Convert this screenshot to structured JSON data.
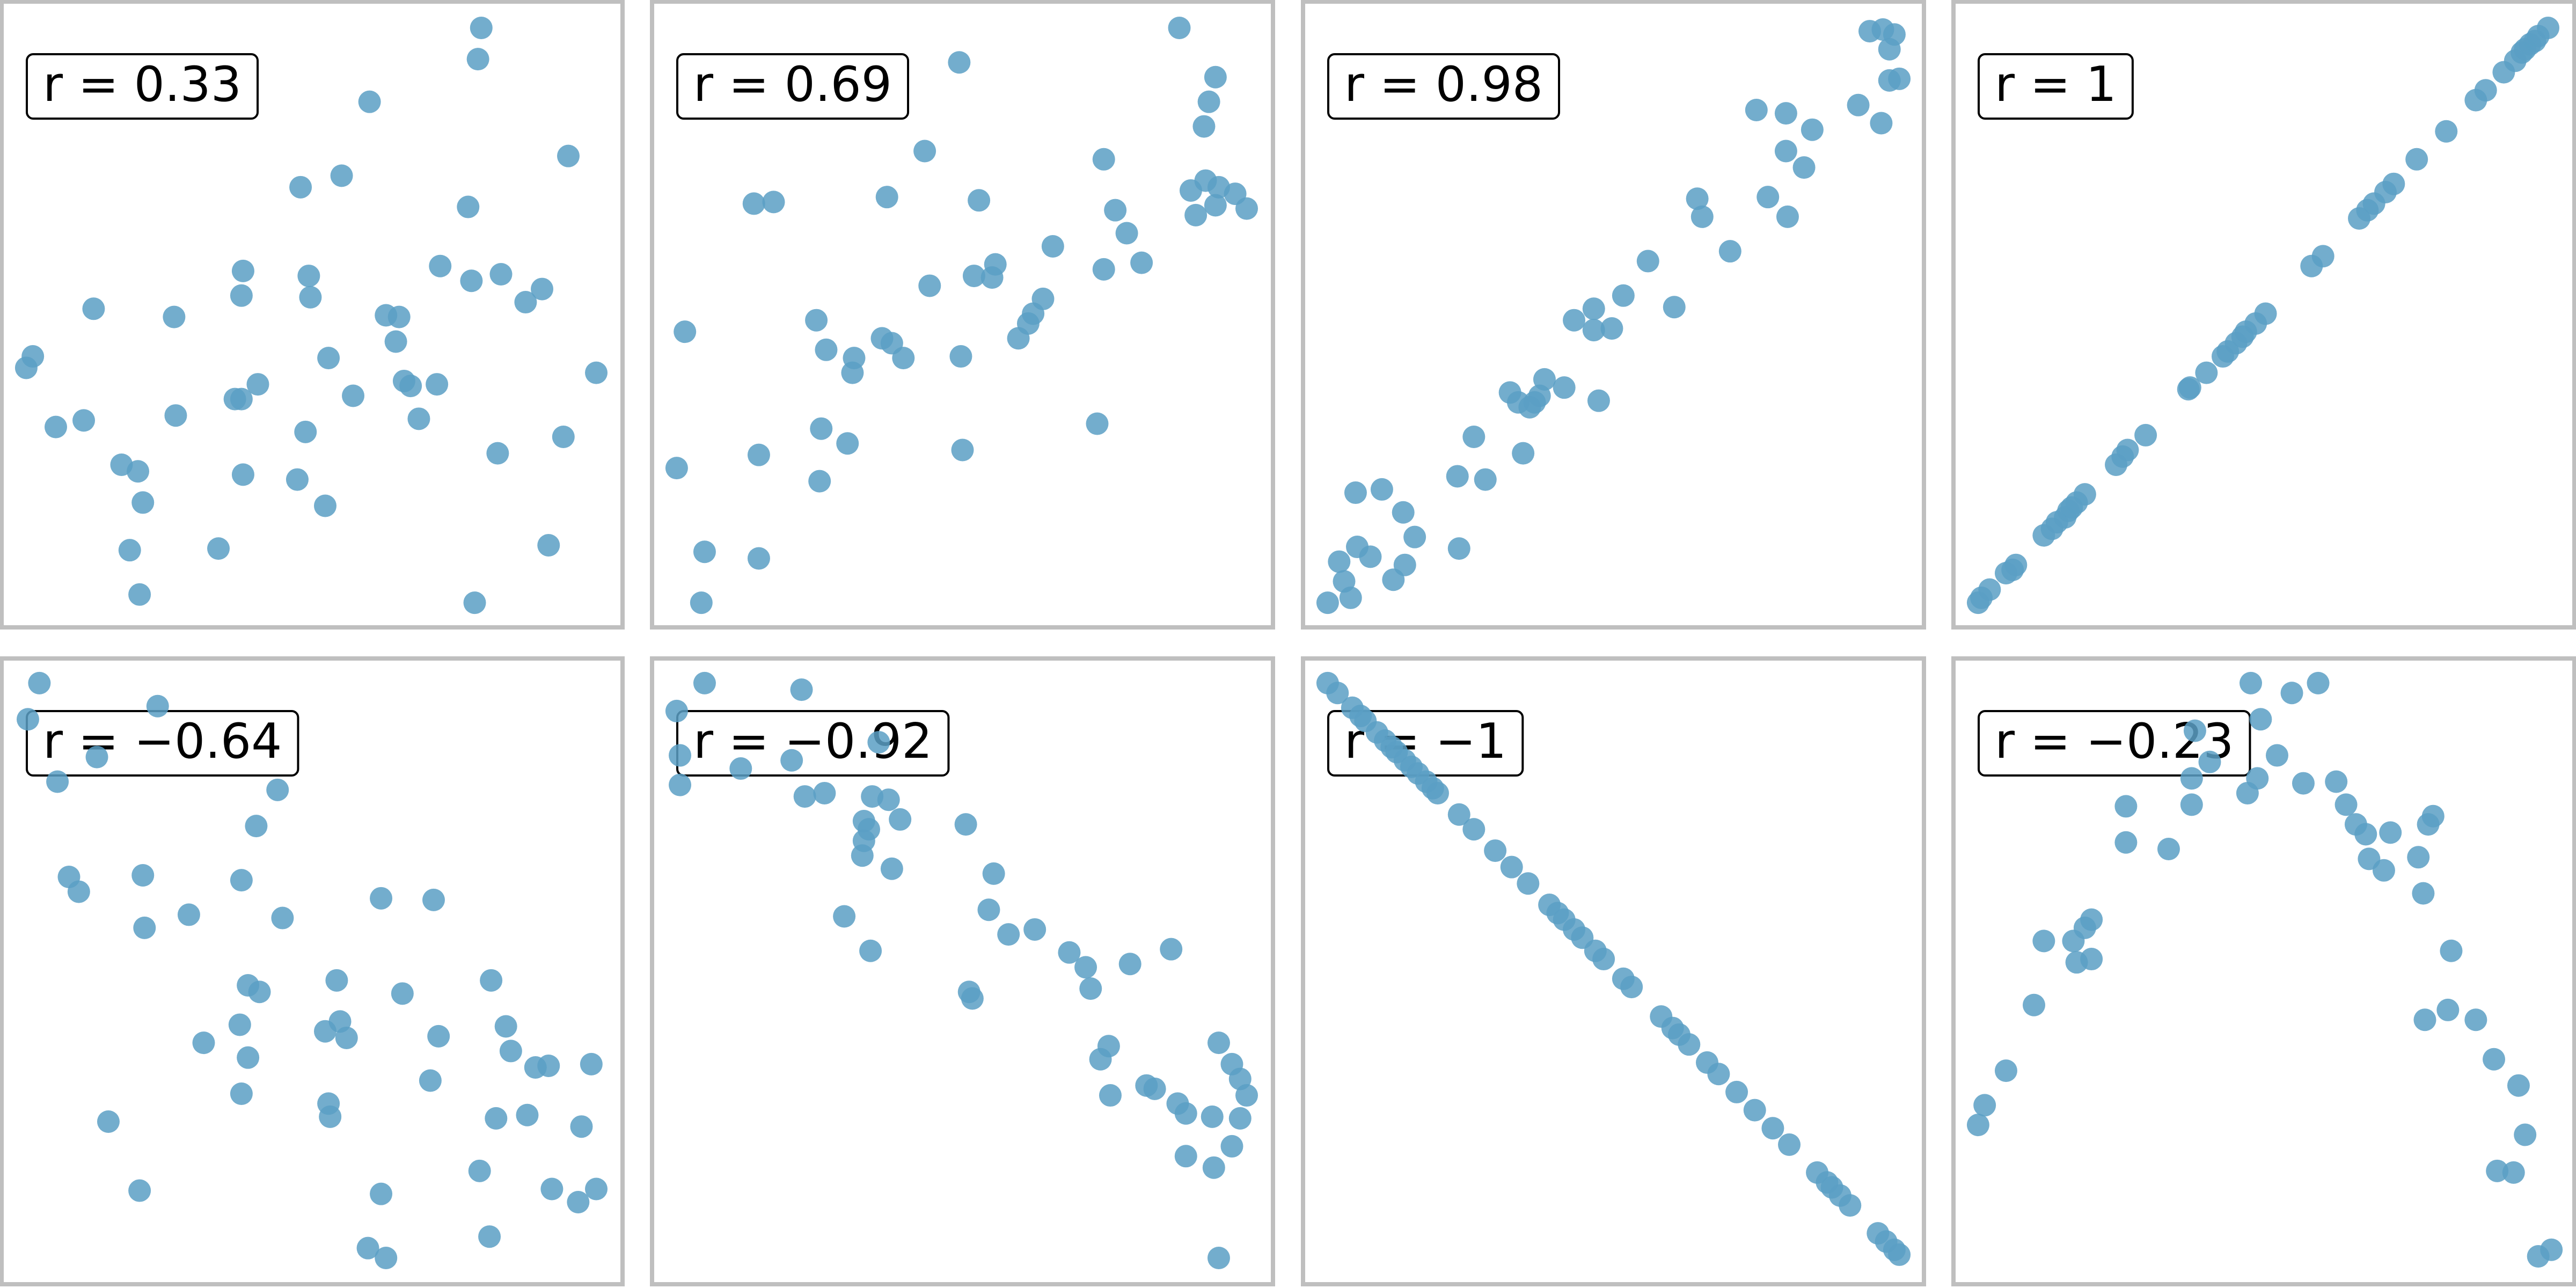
{
  "chart_data": [
    {
      "type": "scatter",
      "label": "r = 0.33",
      "color": "#5b9fc4",
      "xlim": [
        0,
        378
      ],
      "ylim": [
        0,
        381
      ],
      "x": [
        292,
        290,
        224,
        345,
        207,
        182,
        284,
        147,
        187,
        267,
        304,
        286,
        329,
        146,
        188,
        319,
        56,
        105,
        234,
        242,
        240,
        19,
        15,
        199,
        362,
        245,
        249,
        156,
        265,
        146,
        142,
        214,
        106,
        50,
        33,
        254,
        185,
        342,
        302,
        73,
        83,
        147,
        180,
        86,
        197,
        78,
        132,
        333,
        84,
        288
      ],
      "y": [
        365,
        346,
        320,
        287,
        275,
        268,
        256,
        217,
        214,
        220,
        215,
        211,
        206,
        202,
        201,
        198,
        194,
        189,
        190,
        189,
        174,
        165,
        158,
        164,
        155,
        150,
        147,
        148,
        148,
        139,
        139,
        141,
        129,
        126,
        122,
        127,
        119,
        116,
        106,
        99,
        95,
        93,
        90,
        76,
        74,
        47,
        48,
        50,
        20,
        15
      ]
    },
    {
      "type": "scatter",
      "label": "r = 0.69",
      "color": "#5b9fc4",
      "xlim": [
        0,
        378
      ],
      "ylim": [
        0,
        381
      ],
      "x": [
        321,
        343,
        187,
        339,
        336,
        166,
        275,
        337,
        345,
        328,
        355,
        62,
        74,
        143,
        199,
        362,
        282,
        343,
        331,
        289,
        244,
        209,
        196,
        207,
        275,
        298,
        169,
        238,
        232,
        229,
        100,
        20,
        223,
        140,
        146,
        106,
        123,
        188,
        122,
        153,
        103,
        119,
        271,
        189,
        65,
        15,
        102,
        32,
        65,
        30
      ],
      "y": [
        365,
        335,
        344,
        320,
        305,
        290,
        285,
        272,
        268,
        266,
        264,
        258,
        259,
        262,
        260,
        255,
        254,
        257,
        251,
        240,
        232,
        221,
        214,
        213,
        218,
        222,
        208,
        200,
        191,
        185,
        187,
        180,
        176,
        176,
        173,
        169,
        164,
        165,
        155,
        164,
        121,
        112,
        124,
        108,
        105,
        97,
        89,
        46,
        42,
        15
      ]
    },
    {
      "type": "scatter",
      "label": "r = 0.98",
      "color": "#5b9fc4",
      "xlim": [
        0,
        378
      ],
      "ylim": [
        0,
        381
      ],
      "x": [
        345,
        353,
        360,
        357,
        363,
        357,
        338,
        352,
        276,
        294,
        310,
        294,
        305,
        240,
        243,
        283,
        295,
        260,
        210,
        195,
        177,
        226,
        165,
        188,
        177,
        147,
        126,
        131,
        141,
        138,
        159,
        144,
        180,
        104,
        94,
        111,
        134,
        32,
        48,
        61,
        68,
        95,
        33,
        41,
        22,
        55,
        62,
        25,
        29,
        15
      ],
      "y": [
        363,
        364,
        361,
        352,
        334,
        333,
        318,
        307,
        315,
        313,
        303,
        290,
        280,
        261,
        250,
        262,
        250,
        229,
        223,
        202,
        194,
        195,
        187,
        182,
        181,
        151,
        143,
        137,
        137,
        134,
        146,
        141,
        138,
        116,
        92,
        90,
        106,
        82,
        84,
        70,
        55,
        48,
        49,
        43,
        40,
        29,
        38,
        28,
        18,
        15
      ]
    },
    {
      "type": "scatter",
      "label": "r = 1",
      "color": "#5b9fc4",
      "xlim": [
        0,
        378
      ],
      "ylim": [
        0,
        381
      ],
      "x": [
        15,
        17,
        22,
        32,
        36,
        38,
        55,
        60,
        63,
        68,
        70,
        72,
        75,
        80,
        99,
        103,
        106,
        117,
        143,
        144,
        154,
        164,
        167,
        172,
        176,
        178,
        184,
        190,
        218,
        225,
        247,
        252,
        256,
        263,
        268,
        282,
        300,
        318,
        324,
        335,
        342,
        346,
        348,
        351,
        354,
        356,
        362
      ],
      "y": [
        15,
        18,
        23,
        33,
        35,
        38,
        56,
        60,
        64,
        67,
        71,
        73,
        76,
        81,
        99,
        104,
        108,
        117,
        145,
        146,
        155,
        165,
        168,
        173,
        177,
        180,
        185,
        191,
        220,
        226,
        249,
        254,
        258,
        265,
        270,
        285,
        302,
        321,
        327,
        338,
        345,
        350,
        352,
        355,
        357,
        360,
        365
      ]
    },
    {
      "type": "scatter",
      "label": "r = −0.64",
      "color": "#5b9fc4",
      "xlim": [
        0,
        378
      ],
      "ylim": [
        0,
        381
      ],
      "x": [
        23,
        16,
        95,
        58,
        34,
        168,
        155,
        41,
        47,
        86,
        146,
        114,
        171,
        87,
        231,
        263,
        150,
        157,
        204,
        298,
        244,
        307,
        206,
        197,
        210,
        145,
        123,
        266,
        310,
        150,
        325,
        333,
        359,
        261,
        146,
        199,
        200,
        301,
        320,
        65,
        353,
        291,
        84,
        335,
        362,
        351,
        231,
        297,
        223,
        234
      ],
      "y": [
        366,
        344,
        352,
        321,
        306,
        301,
        279,
        248,
        239,
        249,
        246,
        225,
        223,
        217,
        235,
        234,
        182,
        178,
        185,
        185,
        177,
        157,
        160,
        154,
        150,
        158,
        147,
        151,
        142,
        138,
        132,
        133,
        134,
        124,
        116,
        110,
        102,
        101,
        103,
        99,
        96,
        69,
        57,
        58,
        58,
        50,
        55,
        29,
        22,
        16
      ]
    },
    {
      "type": "scatter",
      "label": "r = −0.92",
      "color": "#5b9fc4",
      "xlim": [
        0,
        378
      ],
      "ylim": [
        0,
        381
      ],
      "x": [
        32,
        91,
        15,
        17,
        54,
        85,
        138,
        17,
        93,
        105,
        134,
        144,
        129,
        151,
        191,
        132,
        129,
        128,
        146,
        208,
        117,
        205,
        233,
        217,
        133,
        254,
        264,
        291,
        316,
        193,
        195,
        267,
        345,
        278,
        353,
        273,
        301,
        306,
        358,
        362,
        279,
        320,
        325,
        358,
        341,
        353,
        325,
        342,
        345
      ],
      "y": [
        366,
        362,
        349,
        322,
        314,
        319,
        330,
        304,
        297,
        299,
        297,
        295,
        282,
        283,
        280,
        277,
        270,
        261,
        253,
        250,
        224,
        228,
        216,
        213,
        203,
        202,
        193,
        195,
        204,
        178,
        174,
        180,
        147,
        145,
        134,
        137,
        121,
        119,
        125,
        115,
        115,
        110,
        104,
        101,
        102,
        84,
        78,
        71,
        16
      ]
    },
    {
      "type": "scatter",
      "label": "r = −1",
      "color": "#5b9fc4",
      "xlim": [
        0,
        378
      ],
      "ylim": [
        0,
        381
      ],
      "x": [
        15,
        21,
        30,
        35,
        38,
        45,
        50,
        54,
        57,
        62,
        66,
        70,
        75,
        79,
        82,
        95,
        104,
        117,
        127,
        137,
        150,
        155,
        159,
        165,
        170,
        178,
        183,
        195,
        200,
        218,
        225,
        229,
        235,
        246,
        253,
        264,
        275,
        286,
        296,
        313,
        319,
        322,
        327,
        333,
        350,
        355,
        360,
        363
      ],
      "y": [
        366,
        360,
        351,
        346,
        343,
        336,
        331,
        327,
        324,
        319,
        315,
        311,
        306,
        302,
        299,
        286,
        277,
        264,
        254,
        244,
        231,
        226,
        222,
        216,
        211,
        203,
        198,
        186,
        181,
        163,
        156,
        152,
        146,
        135,
        128,
        117,
        106,
        95,
        85,
        68,
        62,
        59,
        54,
        48,
        31,
        26,
        21,
        18
      ]
    },
    {
      "type": "scatter",
      "label": "r = −0.23",
      "color": "#5b9fc4",
      "xlim": [
        0,
        378
      ],
      "ylim": [
        0,
        381
      ],
      "x": [
        181,
        222,
        206,
        187,
        147,
        197,
        156,
        145,
        185,
        213,
        233,
        179,
        145,
        239,
        105,
        245,
        251,
        292,
        266,
        289,
        105,
        131,
        253,
        262,
        283,
        286,
        84,
        80,
        55,
        73,
        75,
        84,
        303,
        49,
        301,
        287,
        318,
        32,
        329,
        344,
        19,
        15,
        348,
        331,
        341,
        364,
        356
      ],
      "y": [
        366,
        366,
        360,
        344,
        337,
        322,
        318,
        308,
        308,
        305,
        306,
        299,
        292,
        292,
        291,
        280,
        274,
        285,
        275,
        280,
        269,
        265,
        259,
        252,
        260,
        238,
        222,
        217,
        209,
        209,
        196,
        198,
        203,
        170,
        167,
        161,
        161,
        130,
        137,
        121,
        109,
        97,
        91,
        69,
        68,
        21,
        17
      ]
    }
  ]
}
